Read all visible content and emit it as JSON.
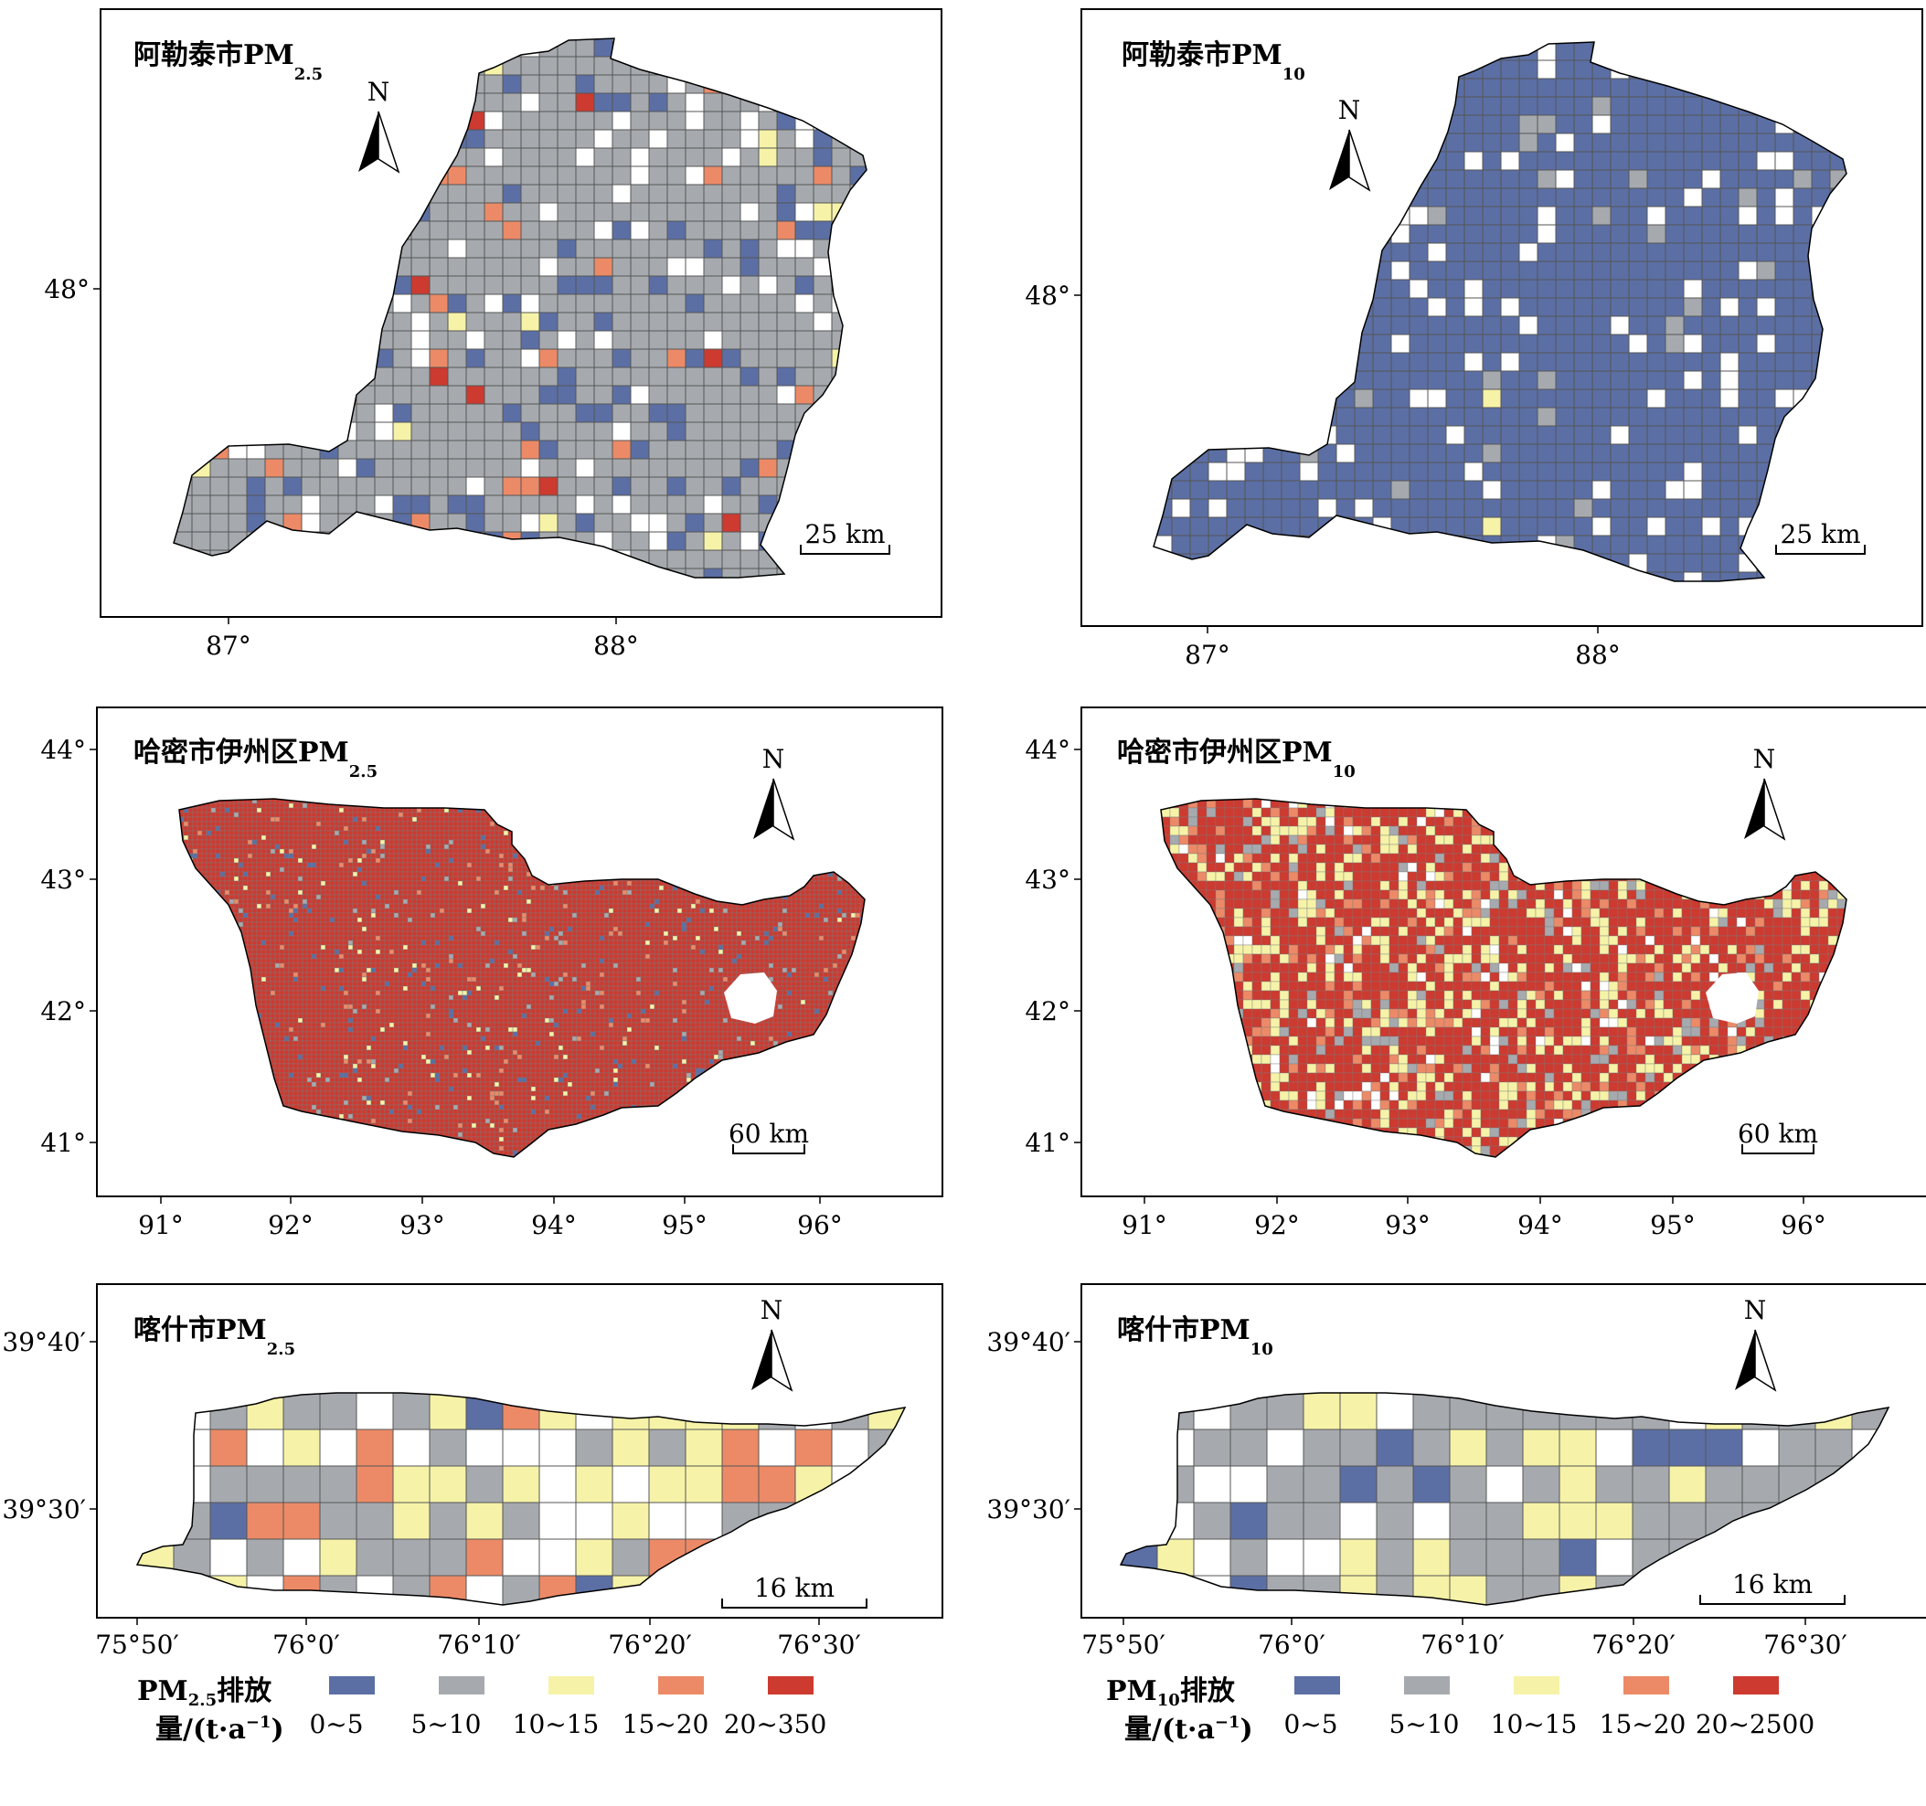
{
  "panels": [
    {
      "id": "altay-pm25",
      "region": "阿勒泰市",
      "pollutant": "PM",
      "sub": "2.5",
      "scale": "25 km",
      "scheme": "altay25",
      "yticks": [
        {
          "label": "48°"
        }
      ],
      "xticks": [
        {
          "label": "87°"
        },
        {
          "label": "88°"
        }
      ]
    },
    {
      "id": "altay-pm10",
      "region": "阿勒泰市",
      "pollutant": "PM",
      "sub": "10",
      "scale": "25 km",
      "scheme": "altay10",
      "yticks": [
        {
          "label": "48°"
        }
      ],
      "xticks": [
        {
          "label": "87°"
        },
        {
          "label": "88°"
        }
      ]
    },
    {
      "id": "hami-pm25",
      "region": "哈密市伊州区",
      "pollutant": "PM",
      "sub": "2.5",
      "scale": "60 km",
      "scheme": "hami25",
      "yticks": [
        {
          "label": "44°"
        },
        {
          "label": "43°"
        },
        {
          "label": "42°"
        },
        {
          "label": "41°"
        }
      ],
      "xticks": [
        {
          "label": "91°"
        },
        {
          "label": "92°"
        },
        {
          "label": "93°"
        },
        {
          "label": "94°"
        },
        {
          "label": "95°"
        },
        {
          "label": "96°"
        }
      ]
    },
    {
      "id": "hami-pm10",
      "region": "哈密市伊州区",
      "pollutant": "PM",
      "sub": "10",
      "scale": "60 km",
      "scheme": "hami10",
      "yticks": [
        {
          "label": "44°"
        },
        {
          "label": "43°"
        },
        {
          "label": "42°"
        },
        {
          "label": "41°"
        }
      ],
      "xticks": [
        {
          "label": "91°"
        },
        {
          "label": "92°"
        },
        {
          "label": "93°"
        },
        {
          "label": "94°"
        },
        {
          "label": "95°"
        },
        {
          "label": "96°"
        }
      ]
    },
    {
      "id": "kashi-pm25",
      "region": "喀什市",
      "pollutant": "PM",
      "sub": "2.5",
      "scale": "16 km",
      "scheme": "kashi25",
      "yticks": [
        {
          "label": "39°40′"
        },
        {
          "label": "39°30′"
        }
      ],
      "xticks": [
        {
          "label": "75°50′"
        },
        {
          "label": "76°0′"
        },
        {
          "label": "76°10′"
        },
        {
          "label": "76°20′"
        },
        {
          "label": "76°30′"
        }
      ]
    },
    {
      "id": "kashi-pm10",
      "region": "喀什市",
      "pollutant": "PM",
      "sub": "10",
      "scale": "16 km",
      "scheme": "kashi10",
      "yticks": [
        {
          "label": "39°40′"
        },
        {
          "label": "39°30′"
        }
      ],
      "xticks": [
        {
          "label": "75°50′"
        },
        {
          "label": "76°0′"
        },
        {
          "label": "76°10′"
        },
        {
          "label": "76°20′"
        },
        {
          "label": "76°30′"
        }
      ]
    }
  ],
  "north_label": "N",
  "colors": {
    "c0_5": "#5b6fa5",
    "c5_10": "#a6aaae",
    "c10_15": "#f6f3a8",
    "c15_20": "#ec8a67",
    "c20_max": "#cc3a30",
    "outline": "#000000"
  },
  "legends": [
    {
      "pollutant": "PM",
      "sub": "2.5",
      "title_rest": "排放",
      "unit_line": "量/(t·a",
      "classes": [
        {
          "label": "0~5",
          "color": "#5b6fa5"
        },
        {
          "label": "5~10",
          "color": "#a6aaae"
        },
        {
          "label": "10~15",
          "color": "#f6f3a8"
        },
        {
          "label": "15~20",
          "color": "#ec8a67"
        },
        {
          "label": "20~350",
          "color": "#cc3a30"
        }
      ]
    },
    {
      "pollutant": "PM",
      "sub": "10",
      "title_rest": "排放",
      "unit_line": "量/(t·a",
      "classes": [
        {
          "label": "0~5",
          "color": "#5b6fa5"
        },
        {
          "label": "5~10",
          "color": "#a6aaae"
        },
        {
          "label": "10~15",
          "color": "#f6f3a8"
        },
        {
          "label": "15~20",
          "color": "#ec8a67"
        },
        {
          "label": "20~2500",
          "color": "#cc3a30"
        }
      ]
    }
  ]
}
